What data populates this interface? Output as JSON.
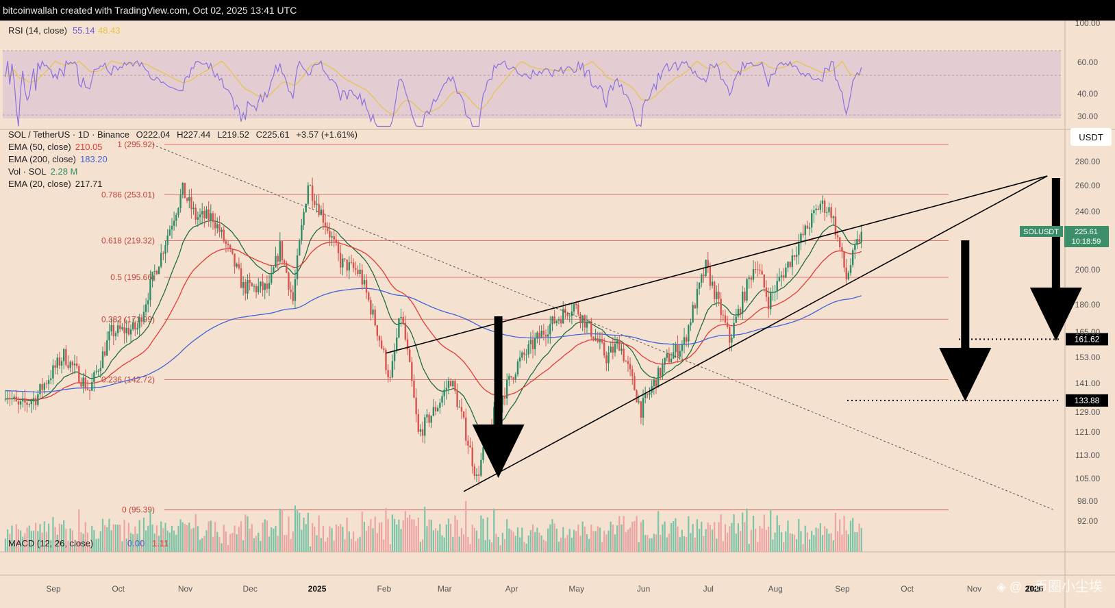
{
  "header": {
    "credit": "bitcoinwallah created with TradingView.com, Oct 02, 2025 13:41 UTC"
  },
  "watermark": "币圈小尘埃",
  "colors": {
    "background": "#f5e1cf",
    "rsi_band": "#e3cdd2",
    "rsi_line": "#8a70e0",
    "rsi_ma": "#e6c248",
    "fib_line": "#d8534f",
    "ema50": "#e23a36",
    "ema200": "#3f63d6",
    "ema20": "#1e6b3e",
    "candle_up": "#2e8b67",
    "candle_down": "#d8534f",
    "vol_up": "#7bc4a8",
    "vol_down": "#eba4a2",
    "price_badge": "#3d8f6a"
  },
  "rsi_panel": {
    "label": "RSI (14, close)",
    "value": "55.14",
    "ma_value": "48.43",
    "axis_ticks": [
      "100.00",
      "60.00",
      "40.00",
      "30.00"
    ]
  },
  "price_panel": {
    "symbol_line": "SOL / TetherUS · 1D · Binance",
    "ohlc": {
      "o": "O222.04",
      "h": "H227.44",
      "l": "L219.52",
      "c": "C225.61",
      "chg": "+3.57 (+1.61%)"
    },
    "indicators": [
      {
        "label": "EMA (50, close)",
        "value": "210.05",
        "color": "#e23a36"
      },
      {
        "label": "EMA (200, close)",
        "value": "183.20",
        "color": "#3f63d6"
      },
      {
        "label": "Vol · SOL",
        "value": "2.28 M",
        "color": "#2e8b67"
      },
      {
        "label": "EMA (20, close)",
        "value": "217.71",
        "color": "#222222"
      }
    ],
    "currency": "USDT",
    "axis_ticks": [
      "280.00",
      "260.00",
      "240.00",
      "220.00",
      "200.00",
      "180.00",
      "165.00",
      "153.00",
      "141.00",
      "129.00",
      "121.00",
      "113.00",
      "105.00",
      "98.00",
      "92.00"
    ],
    "price_tag": {
      "symbol": "SOLUSDT",
      "price": "225.61",
      "countdown": "10:18:59"
    },
    "target_tags": [
      "161.62",
      "133.88"
    ],
    "fib_levels": [
      {
        "label": "1 (295.92)",
        "price": 295.92
      },
      {
        "label": "0.786 (253.01)",
        "price": 253.01
      },
      {
        "label": "0.618 (219.32)",
        "price": 219.32
      },
      {
        "label": "0.5 (195.66)",
        "price": 195.66
      },
      {
        "label": "0.382 (171.99)",
        "price": 171.99
      },
      {
        "label": "0.236 (142.72)",
        "price": 142.72
      },
      {
        "label": "0 (95.39)",
        "price": 95.39
      }
    ]
  },
  "macd_panel": {
    "label": "MACD (12, 26, close)",
    "value1": "0.00",
    "value2": "1.11"
  },
  "time_axis": [
    "Sep",
    "Oct",
    "Nov",
    "Dec",
    "2025",
    "Feb",
    "Mar",
    "Apr",
    "May",
    "Jun",
    "Jul",
    "Aug",
    "Sep",
    "Oct",
    "Nov",
    "Dec",
    "2026"
  ],
  "chart_data": {
    "type": "candlestick",
    "symbol": "SOL / TetherUS",
    "interval": "1D",
    "ylabel": "USDT",
    "x_start": "2024-09-01",
    "x_end": "2026-01-01",
    "price_anchors": [
      {
        "date": "2024-09-01",
        "price": 138
      },
      {
        "date": "2024-09-07",
        "price": 131
      },
      {
        "date": "2024-09-15",
        "price": 135
      },
      {
        "date": "2024-09-28",
        "price": 154
      },
      {
        "date": "2024-10-10",
        "price": 138
      },
      {
        "date": "2024-10-20",
        "price": 165
      },
      {
        "date": "2024-11-01",
        "price": 167
      },
      {
        "date": "2024-11-12",
        "price": 210
      },
      {
        "date": "2024-11-22",
        "price": 256
      },
      {
        "date": "2024-11-28",
        "price": 236
      },
      {
        "date": "2024-12-06",
        "price": 236
      },
      {
        "date": "2024-12-20",
        "price": 190
      },
      {
        "date": "2025-01-01",
        "price": 189
      },
      {
        "date": "2025-01-06",
        "price": 215
      },
      {
        "date": "2025-01-12",
        "price": 182
      },
      {
        "date": "2025-01-19",
        "price": 262
      },
      {
        "date": "2025-01-26",
        "price": 236
      },
      {
        "date": "2025-02-03",
        "price": 205
      },
      {
        "date": "2025-02-12",
        "price": 198
      },
      {
        "date": "2025-02-26",
        "price": 142
      },
      {
        "date": "2025-03-03",
        "price": 175
      },
      {
        "date": "2025-03-11",
        "price": 120
      },
      {
        "date": "2025-03-20",
        "price": 132
      },
      {
        "date": "2025-03-26",
        "price": 143
      },
      {
        "date": "2025-04-07",
        "price": 105
      },
      {
        "date": "2025-04-15",
        "price": 128
      },
      {
        "date": "2025-04-26",
        "price": 150
      },
      {
        "date": "2025-05-10",
        "price": 168
      },
      {
        "date": "2025-05-22",
        "price": 180
      },
      {
        "date": "2025-06-06",
        "price": 153
      },
      {
        "date": "2025-06-12",
        "price": 160
      },
      {
        "date": "2025-06-22",
        "price": 130
      },
      {
        "date": "2025-07-04",
        "price": 152
      },
      {
        "date": "2025-07-12",
        "price": 160
      },
      {
        "date": "2025-07-22",
        "price": 202
      },
      {
        "date": "2025-08-02",
        "price": 161
      },
      {
        "date": "2025-08-14",
        "price": 205
      },
      {
        "date": "2025-08-20",
        "price": 182
      },
      {
        "date": "2025-08-30",
        "price": 206
      },
      {
        "date": "2025-09-13",
        "price": 246
      },
      {
        "date": "2025-09-18",
        "price": 240
      },
      {
        "date": "2025-09-25",
        "price": 195
      },
      {
        "date": "2025-10-02",
        "price": 225.61
      }
    ],
    "annotations": {
      "rising_wedge_upper": [
        {
          "date": "2025-02-24",
          "price": 155
        },
        {
          "date": "2025-12-27",
          "price": 268
        }
      ],
      "rising_wedge_lower": [
        {
          "date": "2025-04-01",
          "price": 101
        },
        {
          "date": "2025-12-27",
          "price": 268
        }
      ],
      "falling_trendline": [
        {
          "date": "2024-11-08",
          "price": 295.92
        },
        {
          "date": "2025-12-30",
          "price": 95.39
        }
      ],
      "targets": [
        161.62,
        133.88
      ]
    }
  }
}
